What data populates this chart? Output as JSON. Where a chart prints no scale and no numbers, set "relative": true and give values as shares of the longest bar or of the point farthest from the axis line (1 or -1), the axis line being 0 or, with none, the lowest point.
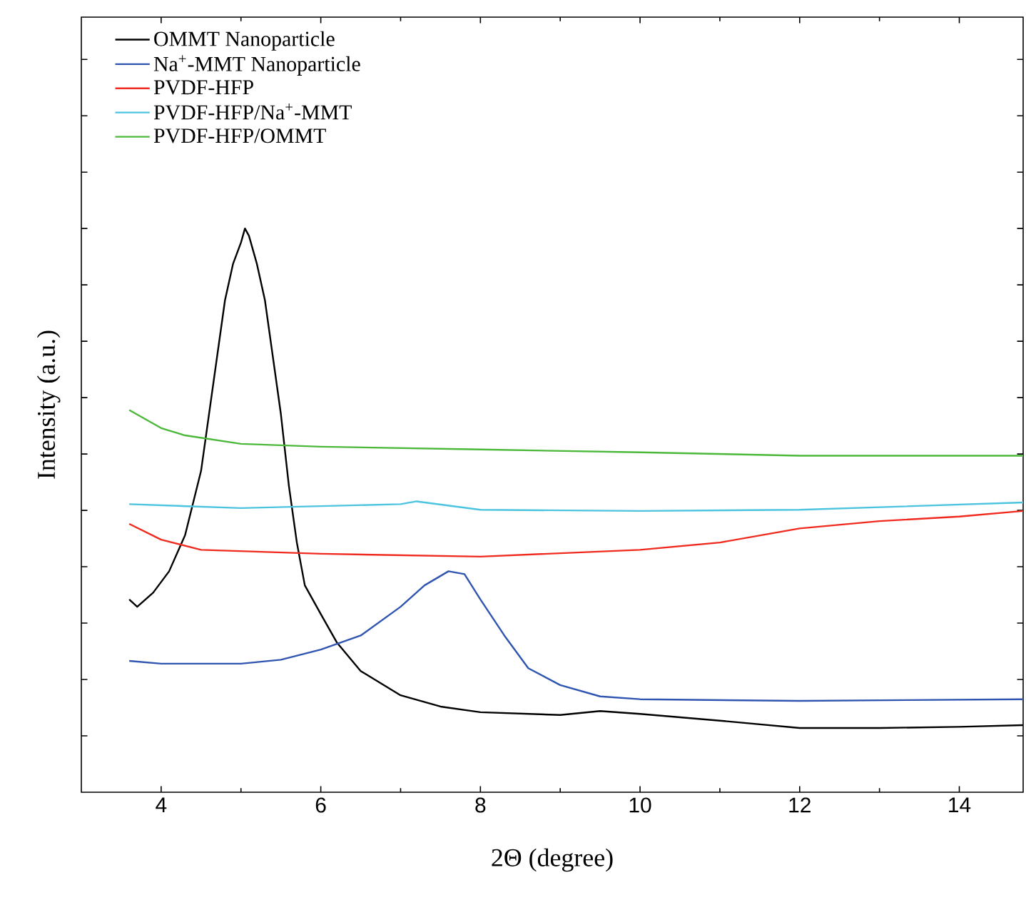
{
  "chart_data": {
    "type": "line",
    "relative": true,
    "xlabel": "2Θ (degree)",
    "ylabel": "Intensity (a.u.)",
    "xlim": [
      3,
      14.8
    ],
    "xticks": [
      4,
      6,
      8,
      10,
      12,
      14
    ],
    "legend": "top left",
    "grid": false,
    "marker": "none",
    "line_style": "solid",
    "series": [
      {
        "name": "OMMT Nanoparticle",
        "color": "#000000",
        "x": [
          3.6,
          3.7,
          3.9,
          4.1,
          4.3,
          4.5,
          4.6,
          4.7,
          4.8,
          4.9,
          5.0,
          5.05,
          5.1,
          5.2,
          5.3,
          5.4,
          5.5,
          5.6,
          5.7,
          5.8,
          6.0,
          6.2,
          6.5,
          7.0,
          7.5,
          8.0,
          9.0,
          9.5,
          10.0,
          11.0,
          12.0,
          13.0,
          14.0,
          14.8
        ],
        "values": [
          0.342,
          0.329,
          0.354,
          0.392,
          0.456,
          0.57,
          0.671,
          0.772,
          0.873,
          0.937,
          0.975,
          1.0,
          0.987,
          0.937,
          0.873,
          0.772,
          0.671,
          0.544,
          0.443,
          0.367,
          0.316,
          0.266,
          0.215,
          0.172,
          0.152,
          0.142,
          0.137,
          0.144,
          0.139,
          0.127,
          0.114,
          0.114,
          0.116,
          0.119
        ]
      },
      {
        "name": "Na$^{+}$-MMT Nanoparticle",
        "color": "#2f55b0",
        "x": [
          3.6,
          4.0,
          5.0,
          5.5,
          6.0,
          6.5,
          7.0,
          7.3,
          7.6,
          7.8,
          8.0,
          8.3,
          8.6,
          9.0,
          9.5,
          10.0,
          12.0,
          14.8
        ],
        "values": [
          0.233,
          0.228,
          0.228,
          0.235,
          0.253,
          0.278,
          0.329,
          0.367,
          0.392,
          0.387,
          0.342,
          0.278,
          0.22,
          0.19,
          0.17,
          0.165,
          0.162,
          0.165
        ]
      },
      {
        "name": "PVDF-HFP",
        "color": "#f02a1e",
        "x": [
          3.6,
          4.0,
          4.5,
          6.0,
          8.0,
          10.0,
          11.0,
          12.0,
          13.0,
          14.0,
          14.8
        ],
        "values": [
          0.476,
          0.448,
          0.43,
          0.423,
          0.418,
          0.43,
          0.443,
          0.468,
          0.481,
          0.489,
          0.499
        ]
      },
      {
        "name": "PVDF-HFP/Na$^{+}$-MMT",
        "color": "#4cc4e0",
        "x": [
          3.6,
          5.0,
          7.0,
          7.2,
          8.0,
          10.0,
          12.0,
          14.8
        ],
        "values": [
          0.511,
          0.504,
          0.511,
          0.516,
          0.501,
          0.499,
          0.501,
          0.514
        ]
      },
      {
        "name": "PVDF-HFP/OMMT",
        "color": "#4bb83a",
        "x": [
          3.6,
          4.0,
          4.3,
          5.0,
          6.0,
          8.0,
          10.0,
          12.0,
          14.8
        ],
        "values": [
          0.678,
          0.646,
          0.633,
          0.618,
          0.613,
          0.608,
          0.603,
          0.597,
          0.597
        ]
      }
    ]
  }
}
